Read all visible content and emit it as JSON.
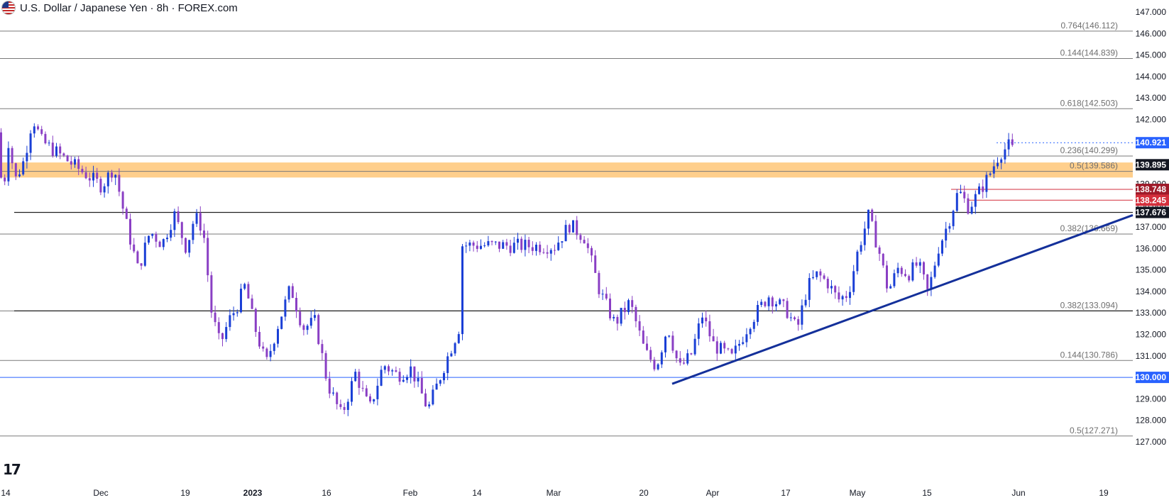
{
  "header": {
    "title": "U.S. Dollar / Japanese Yen · 8h · FOREX.com"
  },
  "icons": {
    "flag": "usd-flag-icon",
    "logo": "tradingview-logo-icon"
  },
  "colors": {
    "up": "#1a3fd6",
    "down": "#8a3fc4",
    "zone": "#ffbf66",
    "trendline": "#14309a",
    "price_black": "#131722",
    "price_red": "#d32f3c",
    "price_darkred": "#9e1b2a",
    "price_blue": "#2962ff"
  },
  "chart_data": {
    "type": "candlestick",
    "title": "U.S. Dollar / Japanese Yen · 8h · FOREX.com",
    "xlabel": "",
    "ylabel": "",
    "ylim": [
      126.6,
      147.4
    ],
    "grid": false,
    "x_ticks": [
      "14",
      "Dec",
      "19",
      "2023",
      "16",
      "Feb",
      "14",
      "Mar",
      "20",
      "Apr",
      "17",
      "May",
      "15",
      "Jun",
      "19"
    ],
    "y_ticks": [
      "147.000",
      "146.000",
      "145.000",
      "144.000",
      "143.000",
      "142.000",
      "141.000",
      "140.000",
      "139.000",
      "138.000",
      "137.000",
      "136.000",
      "135.000",
      "134.000",
      "133.000",
      "132.000",
      "131.000",
      "130.000",
      "129.000",
      "128.000",
      "127.000"
    ],
    "price_path": [
      [
        "14",
        141.4
      ],
      [
        "14",
        139.2
      ],
      [
        "14",
        140.1
      ],
      [
        "14",
        142.1
      ],
      [
        "14",
        141.0
      ],
      [
        "Dec",
        138.9
      ],
      [
        "Dec",
        139.8
      ],
      [
        "Dec",
        137.2
      ],
      [
        "Dec",
        135.0
      ],
      [
        "Dec",
        136.8
      ],
      [
        "Dec",
        136.2
      ],
      [
        "Dec",
        137.6
      ],
      [
        "19",
        136.0
      ],
      [
        "19",
        137.5
      ],
      [
        "19",
        136.9
      ],
      [
        "19",
        133.0
      ],
      [
        "19",
        131.5
      ],
      [
        "19",
        132.6
      ],
      [
        "19",
        133.3
      ],
      [
        "19",
        134.3
      ],
      [
        "2023",
        132.5
      ],
      [
        "2023",
        130.6
      ],
      [
        "2023",
        132.5
      ],
      [
        "2023",
        134.2
      ],
      [
        "2023",
        132.3
      ],
      [
        "2023",
        132.6
      ],
      [
        "16",
        129.7
      ],
      [
        "16",
        128.2
      ],
      [
        "16",
        130.2
      ],
      [
        "16",
        128.5
      ],
      [
        "16",
        130.6
      ],
      [
        "16",
        130.1
      ],
      [
        "Feb",
        130.4
      ],
      [
        "Feb",
        128.5
      ],
      [
        "Feb",
        130.6
      ],
      [
        "Feb",
        132.6
      ],
      [
        "14",
        131.0
      ],
      [
        "14",
        132.6
      ],
      [
        "14",
        134.4
      ],
      [
        "14",
        134.0
      ],
      [
        "14",
        134.8
      ],
      [
        "14",
        136.4
      ],
      [
        "Mar",
        136.1
      ],
      [
        "Mar",
        137.1
      ],
      [
        "Mar",
        136.5
      ],
      [
        "Mar",
        134.0
      ],
      [
        "Mar",
        132.5
      ],
      [
        "Mar",
        133.5
      ],
      [
        "20",
        131.2
      ],
      [
        "20",
        130.5
      ],
      [
        "20",
        132.4
      ],
      [
        "20",
        130.4
      ],
      [
        "20",
        131.0
      ],
      [
        "20",
        132.9
      ],
      [
        "Apr",
        131.5
      ],
      [
        "Apr",
        130.9
      ],
      [
        "Apr",
        132.6
      ],
      [
        "Apr",
        133.8
      ],
      [
        "17",
        133.1
      ],
      [
        "17",
        132.2
      ],
      [
        "17",
        134.2
      ],
      [
        "17",
        134.8
      ],
      [
        "17",
        134.4
      ],
      [
        "17",
        133.6
      ],
      [
        "17",
        133.9
      ],
      [
        "May",
        136.0
      ],
      [
        "May",
        137.5
      ],
      [
        "May",
        136.0
      ],
      [
        "May",
        134.0
      ],
      [
        "May",
        135.1
      ],
      [
        "May",
        134.8
      ],
      [
        "May",
        135.3
      ],
      [
        "15",
        133.9
      ],
      [
        "15",
        136.0
      ],
      [
        "15",
        137.2
      ],
      [
        "15",
        138.7
      ],
      [
        "15",
        137.9
      ],
      [
        "15",
        138.6
      ],
      [
        "15",
        139.4
      ],
      [
        "15",
        140.4
      ],
      [
        "15",
        140.8
      ],
      [
        "Jun",
        140.1
      ],
      [
        "Jun",
        139.3
      ],
      [
        "Jun",
        139.3
      ]
    ],
    "horizontal_levels": [
      {
        "label": "0.764(146.112)",
        "price": 146.112
      },
      {
        "label": "0.144(144.839)",
        "price": 144.839
      },
      {
        "label": "0.618(142.503)",
        "price": 142.503
      },
      {
        "label": "0.236(140.299)",
        "price": 140.299
      },
      {
        "label": "0.5(139.586)",
        "price": 139.586
      },
      {
        "label": "0.382(136.669)",
        "price": 136.669
      },
      {
        "label": "0.382(133.094)",
        "price": 133.094
      },
      {
        "label": "0.144(130.786)",
        "price": 130.786
      },
      {
        "label": "0.5(127.271)",
        "price": 127.271
      }
    ],
    "support_lines": [
      137.676,
      133.094,
      130.0
    ],
    "resistance_zone": [
      139.3,
      140.0
    ],
    "trendline": {
      "from": [
        "20",
        129.7
      ],
      "to": [
        "Jun",
        137.55
      ]
    },
    "price_tags": [
      {
        "label": "140.921",
        "price": 140.921,
        "style": "blue"
      },
      {
        "label": "139.895",
        "price": 139.895,
        "style": "black"
      },
      {
        "label": "138.748",
        "price": 138.748,
        "style": "darkred"
      },
      {
        "label": "138.245",
        "price": 138.245,
        "style": "red"
      },
      {
        "label": "137.676",
        "price": 137.676,
        "style": "black"
      },
      {
        "label": "130.000",
        "price": 130.0,
        "style": "blue"
      }
    ]
  }
}
